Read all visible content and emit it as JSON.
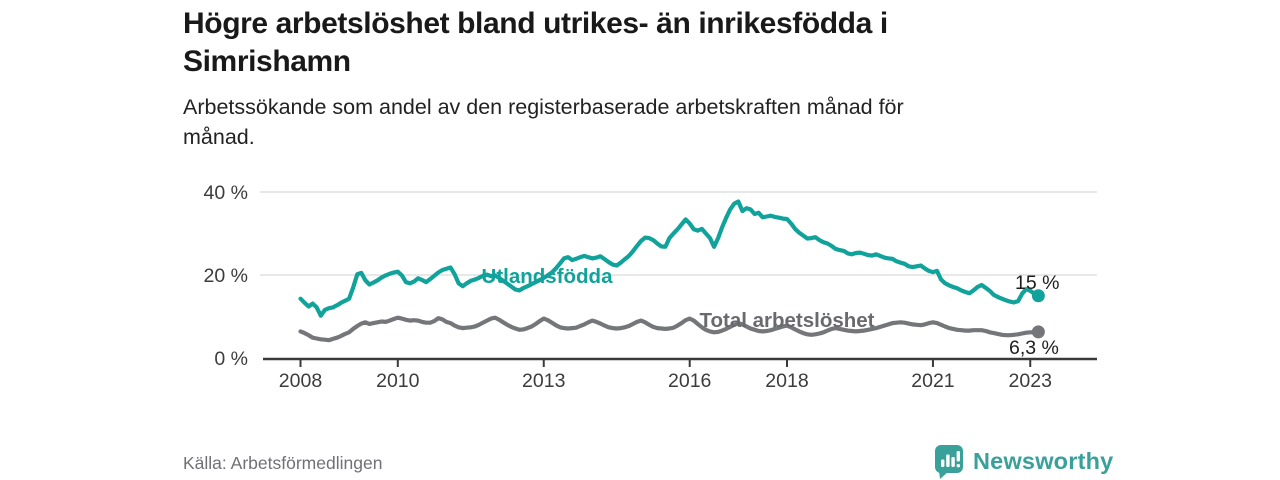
{
  "header": {
    "title": "Högre arbetslöshet bland utrikes- än inrikesfödda i\nSimrishamn",
    "subtitle": "Arbetssökande som andel av den registerbaserade arbetskraften månad för\nmånad."
  },
  "footer": {
    "source": "Källa: Arbetsförmedlingen",
    "logo": {
      "name": "Newsworthy",
      "color": "#3aa19a"
    }
  },
  "chart_data": {
    "type": "line",
    "title": "",
    "xlabel": "",
    "ylabel": "",
    "ylim": [
      0,
      42
    ],
    "x_unit": "year-month",
    "x_start": 2008,
    "x_step_months": 1,
    "grid": "horizontal",
    "legend": "inline-labels",
    "y_ticks": [
      {
        "value": 0,
        "label": "0 %"
      },
      {
        "value": 20,
        "label": "20 %"
      },
      {
        "value": 40,
        "label": "40 %"
      }
    ],
    "x_ticks": [
      {
        "value": 2008,
        "label": "2008"
      },
      {
        "value": 2010,
        "label": "2010"
      },
      {
        "value": 2013,
        "label": "2013"
      },
      {
        "value": 2016,
        "label": "2016"
      },
      {
        "value": 2018,
        "label": "2018"
      },
      {
        "value": 2021,
        "label": "2021"
      },
      {
        "value": 2023,
        "label": "2023"
      }
    ],
    "series": [
      {
        "name": "Utlandsfödda",
        "color": "#11a39b",
        "end_label": "15 %",
        "end_value": 15.0,
        "values": [
          14.3,
          13.3,
          12.4,
          13.1,
          12.2,
          10.2,
          11.6,
          12.0,
          12.2,
          12.7,
          13.3,
          13.8,
          14.3,
          17.0,
          20.2,
          20.5,
          18.7,
          17.7,
          18.2,
          18.7,
          19.4,
          19.9,
          20.3,
          20.6,
          20.8,
          19.9,
          18.3,
          18.0,
          18.4,
          19.2,
          18.8,
          18.3,
          19.0,
          19.8,
          20.6,
          21.2,
          21.5,
          21.8,
          20.2,
          18.0,
          17.3,
          18.0,
          18.6,
          18.9,
          19.3,
          19.8,
          20.1,
          19.7,
          19.9,
          19.3,
          18.6,
          17.9,
          17.2,
          16.5,
          16.3,
          16.9,
          17.3,
          17.8,
          18.3,
          18.8,
          19.3,
          19.9,
          20.6,
          21.6,
          22.8,
          24.0,
          24.3,
          23.6,
          23.9,
          24.3,
          24.6,
          24.3,
          24.0,
          24.2,
          24.5,
          23.8,
          23.1,
          22.5,
          22.3,
          23.0,
          23.8,
          24.6,
          25.7,
          27.0,
          28.2,
          29.0,
          28.9,
          28.4,
          27.6,
          26.9,
          26.8,
          28.9,
          30.0,
          31.0,
          32.2,
          33.4,
          32.4,
          31.0,
          30.7,
          31.1,
          30.0,
          28.9,
          26.8,
          28.9,
          31.5,
          33.8,
          35.8,
          37.2,
          37.7,
          35.4,
          36.1,
          35.8,
          34.7,
          35.0,
          33.9,
          34.1,
          34.3,
          34.0,
          33.8,
          33.6,
          33.5,
          32.4,
          31.1,
          30.2,
          29.5,
          28.8,
          28.9,
          29.1,
          28.4,
          27.9,
          27.6,
          27.0,
          26.3,
          26.0,
          25.8,
          25.2,
          25.0,
          25.3,
          25.4,
          25.1,
          24.8,
          24.7,
          25.0,
          24.6,
          24.2,
          24.0,
          23.9,
          23.3,
          23.0,
          22.7,
          22.1,
          21.9,
          22.1,
          22.3,
          21.6,
          21.0,
          20.7,
          21.0,
          18.9,
          18.0,
          17.5,
          17.1,
          16.8,
          16.3,
          15.9,
          15.6,
          16.3,
          17.1,
          17.6,
          16.9,
          16.2,
          15.2,
          14.7,
          14.3,
          13.9,
          13.6,
          13.4,
          13.7,
          15.5,
          16.6,
          16.2,
          15.5,
          15.0
        ]
      },
      {
        "name": "Total arbetslöshet",
        "color": "#75767a",
        "end_label": "6,3 %",
        "end_value": 6.3,
        "values": [
          6.4,
          6.0,
          5.5,
          4.9,
          4.7,
          4.5,
          4.4,
          4.3,
          4.6,
          4.9,
          5.3,
          5.8,
          6.2,
          7.0,
          7.7,
          8.3,
          8.6,
          8.2,
          8.4,
          8.6,
          8.8,
          8.7,
          9.0,
          9.4,
          9.7,
          9.5,
          9.2,
          9.0,
          9.1,
          9.0,
          8.7,
          8.5,
          8.5,
          8.9,
          9.6,
          9.3,
          8.7,
          8.4,
          7.8,
          7.4,
          7.2,
          7.3,
          7.4,
          7.6,
          8.0,
          8.5,
          9.0,
          9.5,
          9.7,
          9.2,
          8.6,
          8.0,
          7.5,
          7.1,
          6.8,
          6.9,
          7.2,
          7.6,
          8.2,
          8.9,
          9.5,
          9.1,
          8.5,
          7.9,
          7.4,
          7.2,
          7.1,
          7.2,
          7.3,
          7.7,
          8.1,
          8.6,
          9.0,
          8.7,
          8.3,
          7.8,
          7.4,
          7.2,
          7.1,
          7.2,
          7.4,
          7.7,
          8.2,
          8.7,
          9.0,
          8.6,
          8.0,
          7.5,
          7.2,
          7.1,
          7.0,
          7.1,
          7.3,
          7.8,
          8.4,
          9.1,
          9.5,
          9.0,
          8.2,
          7.4,
          6.8,
          6.4,
          6.2,
          6.3,
          6.6,
          7.0,
          7.5,
          8.0,
          8.4,
          8.1,
          7.6,
          7.1,
          6.8,
          6.5,
          6.4,
          6.5,
          6.7,
          7.0,
          7.3,
          7.6,
          7.8,
          7.4,
          6.9,
          6.4,
          6.0,
          5.7,
          5.6,
          5.7,
          5.9,
          6.2,
          6.6,
          7.0,
          7.2,
          7.0,
          6.8,
          6.6,
          6.5,
          6.4,
          6.5,
          6.6,
          6.8,
          7.0,
          7.2,
          7.5,
          7.8,
          8.1,
          8.4,
          8.5,
          8.6,
          8.5,
          8.3,
          8.1,
          8.0,
          7.9,
          8.1,
          8.4,
          8.6,
          8.4,
          8.0,
          7.6,
          7.2,
          7.0,
          6.8,
          6.7,
          6.6,
          6.6,
          6.7,
          6.7,
          6.7,
          6.5,
          6.2,
          6.0,
          5.8,
          5.6,
          5.5,
          5.5,
          5.6,
          5.7,
          5.9,
          6.1,
          6.2,
          6.2,
          6.3
        ]
      }
    ]
  }
}
